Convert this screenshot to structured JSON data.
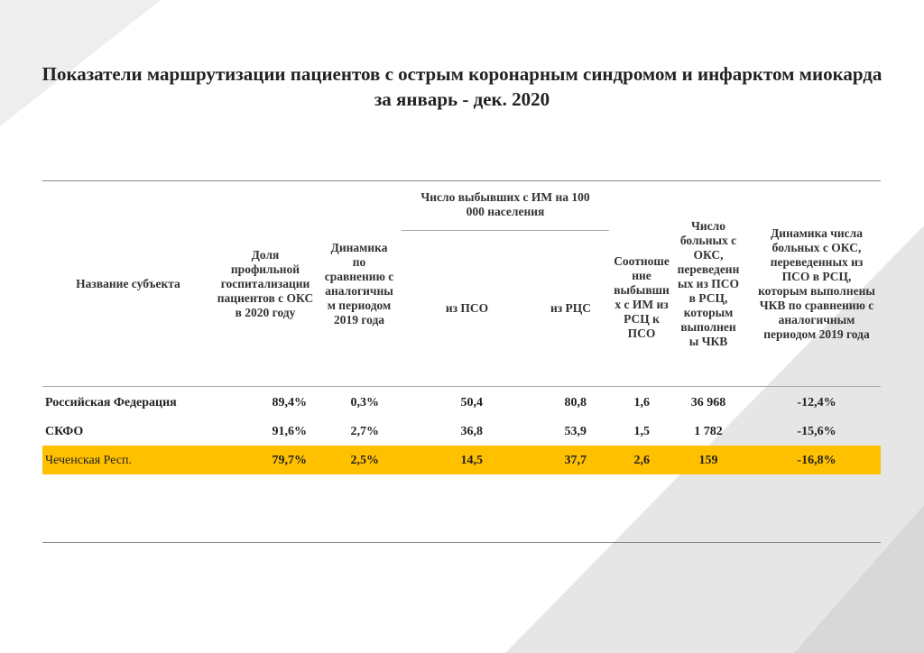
{
  "title": "Показатели маршрутизации пациентов с острым коронарным синдромом и инфарктом миокарда за январь - дек. 2020",
  "table": {
    "headers": [
      "Название субъекта",
      "Доля профильной госпитализации пациентов с ОКС в 2020 году",
      "Динамика по сравнению с аналогичным периодом 2019 года",
      "из ПСО",
      "из РЦС",
      "Соотношение выбывших с ИМ из РСЦ к ПСО",
      "Число больных с ОКС, переведенных из ПСО в РСЦ, которым выполнены ЧКВ",
      "Динамика числа больных с ОКС, переведенных из ПСО в РСЦ, которым выполнены ЧКВ по сравнению с аналогичным периодом 2019 года"
    ],
    "group_header": "Число выбывших с ИМ на 100 000 населения",
    "rows": [
      [
        "Российская Федерация",
        "89,4%",
        "0,3%",
        "50,4",
        "80,8",
        "1,6",
        "36 968",
        "-12,4%"
      ],
      [
        "СКФО",
        "91,6%",
        "2,7%",
        "36,8",
        "53,9",
        "1,5",
        "1 782",
        "-15,6%"
      ],
      [
        "Чеченская Респ.",
        "79,7%",
        "2,5%",
        "14,5",
        "37,7",
        "2,6",
        "159",
        "-16,8%"
      ]
    ]
  }
}
